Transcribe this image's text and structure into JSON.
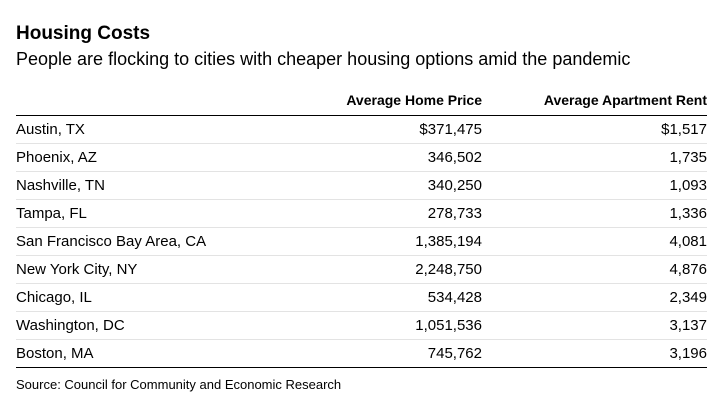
{
  "title": "Housing Costs",
  "subtitle": "People are flocking to cities with cheaper housing options amid the pandemic",
  "source": "Source: Council for Community and Economic Research",
  "chart_data": {
    "type": "table",
    "title": "Housing Costs",
    "subtitle": "People are flocking to cities with cheaper housing options amid the pandemic",
    "columns": [
      "",
      "Average Home Price",
      "Average Apartment Rent"
    ],
    "rows": [
      {
        "city": "Austin, TX",
        "home_price": "$371,475",
        "rent": "$1,517"
      },
      {
        "city": "Phoenix, AZ",
        "home_price": "346,502",
        "rent": "1,735"
      },
      {
        "city": "Nashville, TN",
        "home_price": "340,250",
        "rent": "1,093"
      },
      {
        "city": "Tampa, FL",
        "home_price": "278,733",
        "rent": "1,336"
      },
      {
        "city": "San Francisco Bay Area, CA",
        "home_price": "1,385,194",
        "rent": "4,081"
      },
      {
        "city": "New York City, NY",
        "home_price": "2,248,750",
        "rent": "4,876"
      },
      {
        "city": "Chicago, IL",
        "home_price": "534,428",
        "rent": "2,349"
      },
      {
        "city": "Washington, DC",
        "home_price": "1,051,536",
        "rent": "3,137"
      },
      {
        "city": "Boston, MA",
        "home_price": "745,762",
        "rent": "3,196"
      }
    ],
    "source": "Source: Council for Community and Economic Research"
  }
}
